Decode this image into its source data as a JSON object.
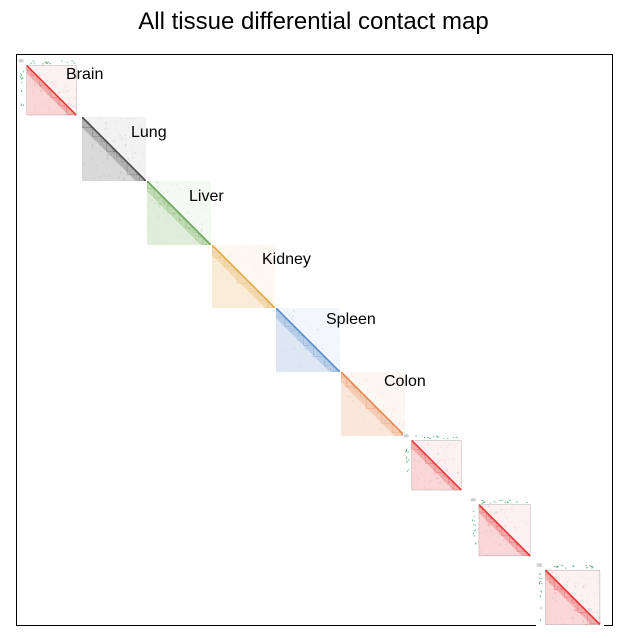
{
  "title": "All tissue differential contact map",
  "panels": [
    {
      "label": "Brain",
      "color": "#e23b3b",
      "style": "framed"
    },
    {
      "label": "Lung",
      "color": "#4a4a4a",
      "style": "plain"
    },
    {
      "label": "Liver",
      "color": "#6aa84f",
      "style": "plain"
    },
    {
      "label": "Kidney",
      "color": "#e0a84a",
      "style": "plain"
    },
    {
      "label": "Spleen",
      "color": "#5b8ec9",
      "style": "plain"
    },
    {
      "label": "Colon",
      "color": "#e8874f",
      "style": "plain"
    },
    {
      "label": "",
      "color": "#e23b3b",
      "style": "framed"
    },
    {
      "label": "",
      "color": "#e23b3b",
      "style": "framed"
    },
    {
      "label": "",
      "color": "#e23b3b",
      "style": "framed"
    }
  ]
}
